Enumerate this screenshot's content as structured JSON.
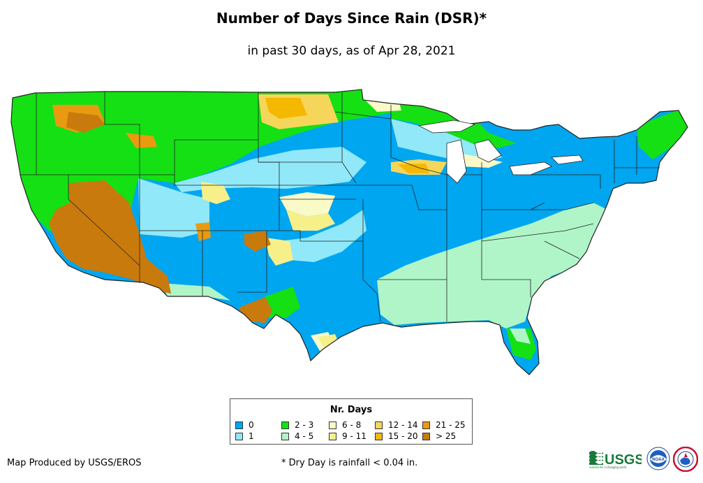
{
  "title": "Number of Days Since Rain (DSR)*",
  "subtitle": "in past 30 days, as of Apr 28, 2021",
  "legend": {
    "title": "Nr. Days",
    "items": [
      {
        "label": "0",
        "color": "#00a6f0"
      },
      {
        "label": "1",
        "color": "#90e8f8"
      },
      {
        "label": "2 - 3",
        "color": "#14e014"
      },
      {
        "label": "4 - 5",
        "color": "#b0f5c8"
      },
      {
        "label": "6 - 8",
        "color": "#fafac8"
      },
      {
        "label": "9 - 11",
        "color": "#f7f08a"
      },
      {
        "label": "12 - 14",
        "color": "#f5d65a"
      },
      {
        "label": "15 - 20",
        "color": "#f5b800"
      },
      {
        "label": "21 - 25",
        "color": "#e89a10"
      },
      {
        "label": "> 25",
        "color": "#c97a0c"
      }
    ]
  },
  "footer": {
    "credit": "Map Produced by USGS/EROS",
    "footnote": "* Dry Day is rainfall < 0.04 in."
  },
  "logos": {
    "usgs_text": "USGS",
    "usgs_tagline": "science for a changing world",
    "noaa_text": "NOAA"
  }
}
